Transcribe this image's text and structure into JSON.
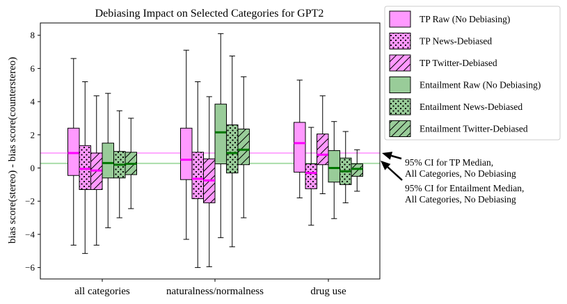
{
  "chart_data": {
    "type": "box",
    "title": "Debiasing Impact on Selected Categories for GPT2",
    "xlabel": "",
    "ylabel": "bias score(stereo) - bias score(counterstereo)",
    "ylim": [
      -6.7,
      8.8
    ],
    "yticks": [
      -6,
      -4,
      -2,
      0,
      2,
      4,
      6,
      8
    ],
    "categories": [
      "all categories",
      "naturalness/normalness",
      "drug use"
    ],
    "colors": {
      "tp_face": "#ff99ff",
      "tp_median": "#ff00ff",
      "ent_face": "#99cc99",
      "ent_median": "#007700",
      "tp_line": "#ffaaff",
      "ent_line": "#aaddaa"
    },
    "series": [
      {
        "name": "TP Raw (No Debiasing)",
        "group": "tp",
        "hatch": "none",
        "boxes": [
          {
            "whislo": -4.65,
            "q1": -0.45,
            "med": 0.9,
            "q3": 2.4,
            "whishi": 6.6
          },
          {
            "whislo": -4.3,
            "q1": -0.7,
            "med": 0.5,
            "q3": 2.4,
            "whishi": 7.1
          },
          {
            "whislo": -1.8,
            "q1": -0.25,
            "med": 1.5,
            "q3": 2.75,
            "whishi": 5.3
          }
        ]
      },
      {
        "name": "TP News-Debiased",
        "group": "tp",
        "hatch": "dots",
        "boxes": [
          {
            "whislo": -5.15,
            "q1": -1.3,
            "med": -0.05,
            "q3": 1.35,
            "whishi": 5.2
          },
          {
            "whislo": -6.0,
            "q1": -1.85,
            "med": -0.65,
            "q3": 0.95,
            "whishi": 5.2
          },
          {
            "whislo": -3.45,
            "q1": -1.25,
            "med": -0.3,
            "q3": 0.25,
            "whishi": 2.45
          }
        ]
      },
      {
        "name": "TP Twitter-Debiased",
        "group": "tp",
        "hatch": "diag",
        "boxes": [
          {
            "whislo": -4.65,
            "q1": -1.3,
            "med": -0.15,
            "q3": 0.9,
            "whishi": 4.35
          },
          {
            "whislo": -5.95,
            "q1": -2.1,
            "med": -0.75,
            "q3": 0.55,
            "whishi": 4.3
          },
          {
            "whislo": -1.55,
            "q1": 0.2,
            "med": 0.8,
            "q3": 2.05,
            "whishi": 4.35
          }
        ]
      },
      {
        "name": "Entailment Raw (No Debiasing)",
        "group": "ent",
        "hatch": "none",
        "boxes": [
          {
            "whislo": -3.6,
            "q1": -0.6,
            "med": 0.3,
            "q3": 1.5,
            "whishi": 4.5
          },
          {
            "whislo": -4.2,
            "q1": 0.25,
            "med": 2.15,
            "q3": 3.85,
            "whishi": 8.1
          },
          {
            "whislo": -3.05,
            "q1": -0.85,
            "med": 0.0,
            "q3": 1.05,
            "whishi": 2.8
          }
        ]
      },
      {
        "name": "Entailment News-Debiased",
        "group": "ent",
        "hatch": "dots",
        "boxes": [
          {
            "whislo": -3.0,
            "q1": -0.6,
            "med": 0.2,
            "q3": 1.0,
            "whishi": 3.45
          },
          {
            "whislo": -4.75,
            "q1": -0.3,
            "med": 0.9,
            "q3": 2.6,
            "whishi": 6.75
          },
          {
            "whislo": -2.1,
            "q1": -1.0,
            "med": -0.2,
            "q3": 0.6,
            "whishi": 2.2
          }
        ]
      },
      {
        "name": "Entailment Twitter-Debiased",
        "group": "ent",
        "hatch": "diag",
        "boxes": [
          {
            "whislo": -2.45,
            "q1": -0.4,
            "med": 0.25,
            "q3": 0.95,
            "whishi": 3.0
          },
          {
            "whislo": -3.0,
            "q1": 0.2,
            "med": 1.1,
            "q3": 2.35,
            "whishi": 5.5
          },
          {
            "whislo": -1.4,
            "q1": -0.5,
            "med": -0.05,
            "q3": 0.25,
            "whishi": 1.1
          }
        ]
      }
    ],
    "reference_lines": [
      {
        "name": "95% CI for TP Median, All Categories, No Debiasing",
        "group": "tp",
        "value": 0.9
      },
      {
        "name": "95% CI for Entailment Median, All Categories, No Debiasing",
        "group": "ent",
        "value": 0.28
      }
    ],
    "legend_position": "outside top-right",
    "annotations": [
      {
        "line1": "95% CI for TP Median,",
        "line2": "All Categories, No Debiasing",
        "target": "tp"
      },
      {
        "line1": "95% CI for Entailment Median,",
        "line2": "All Categories, No Debiasing",
        "target": "ent"
      }
    ]
  }
}
